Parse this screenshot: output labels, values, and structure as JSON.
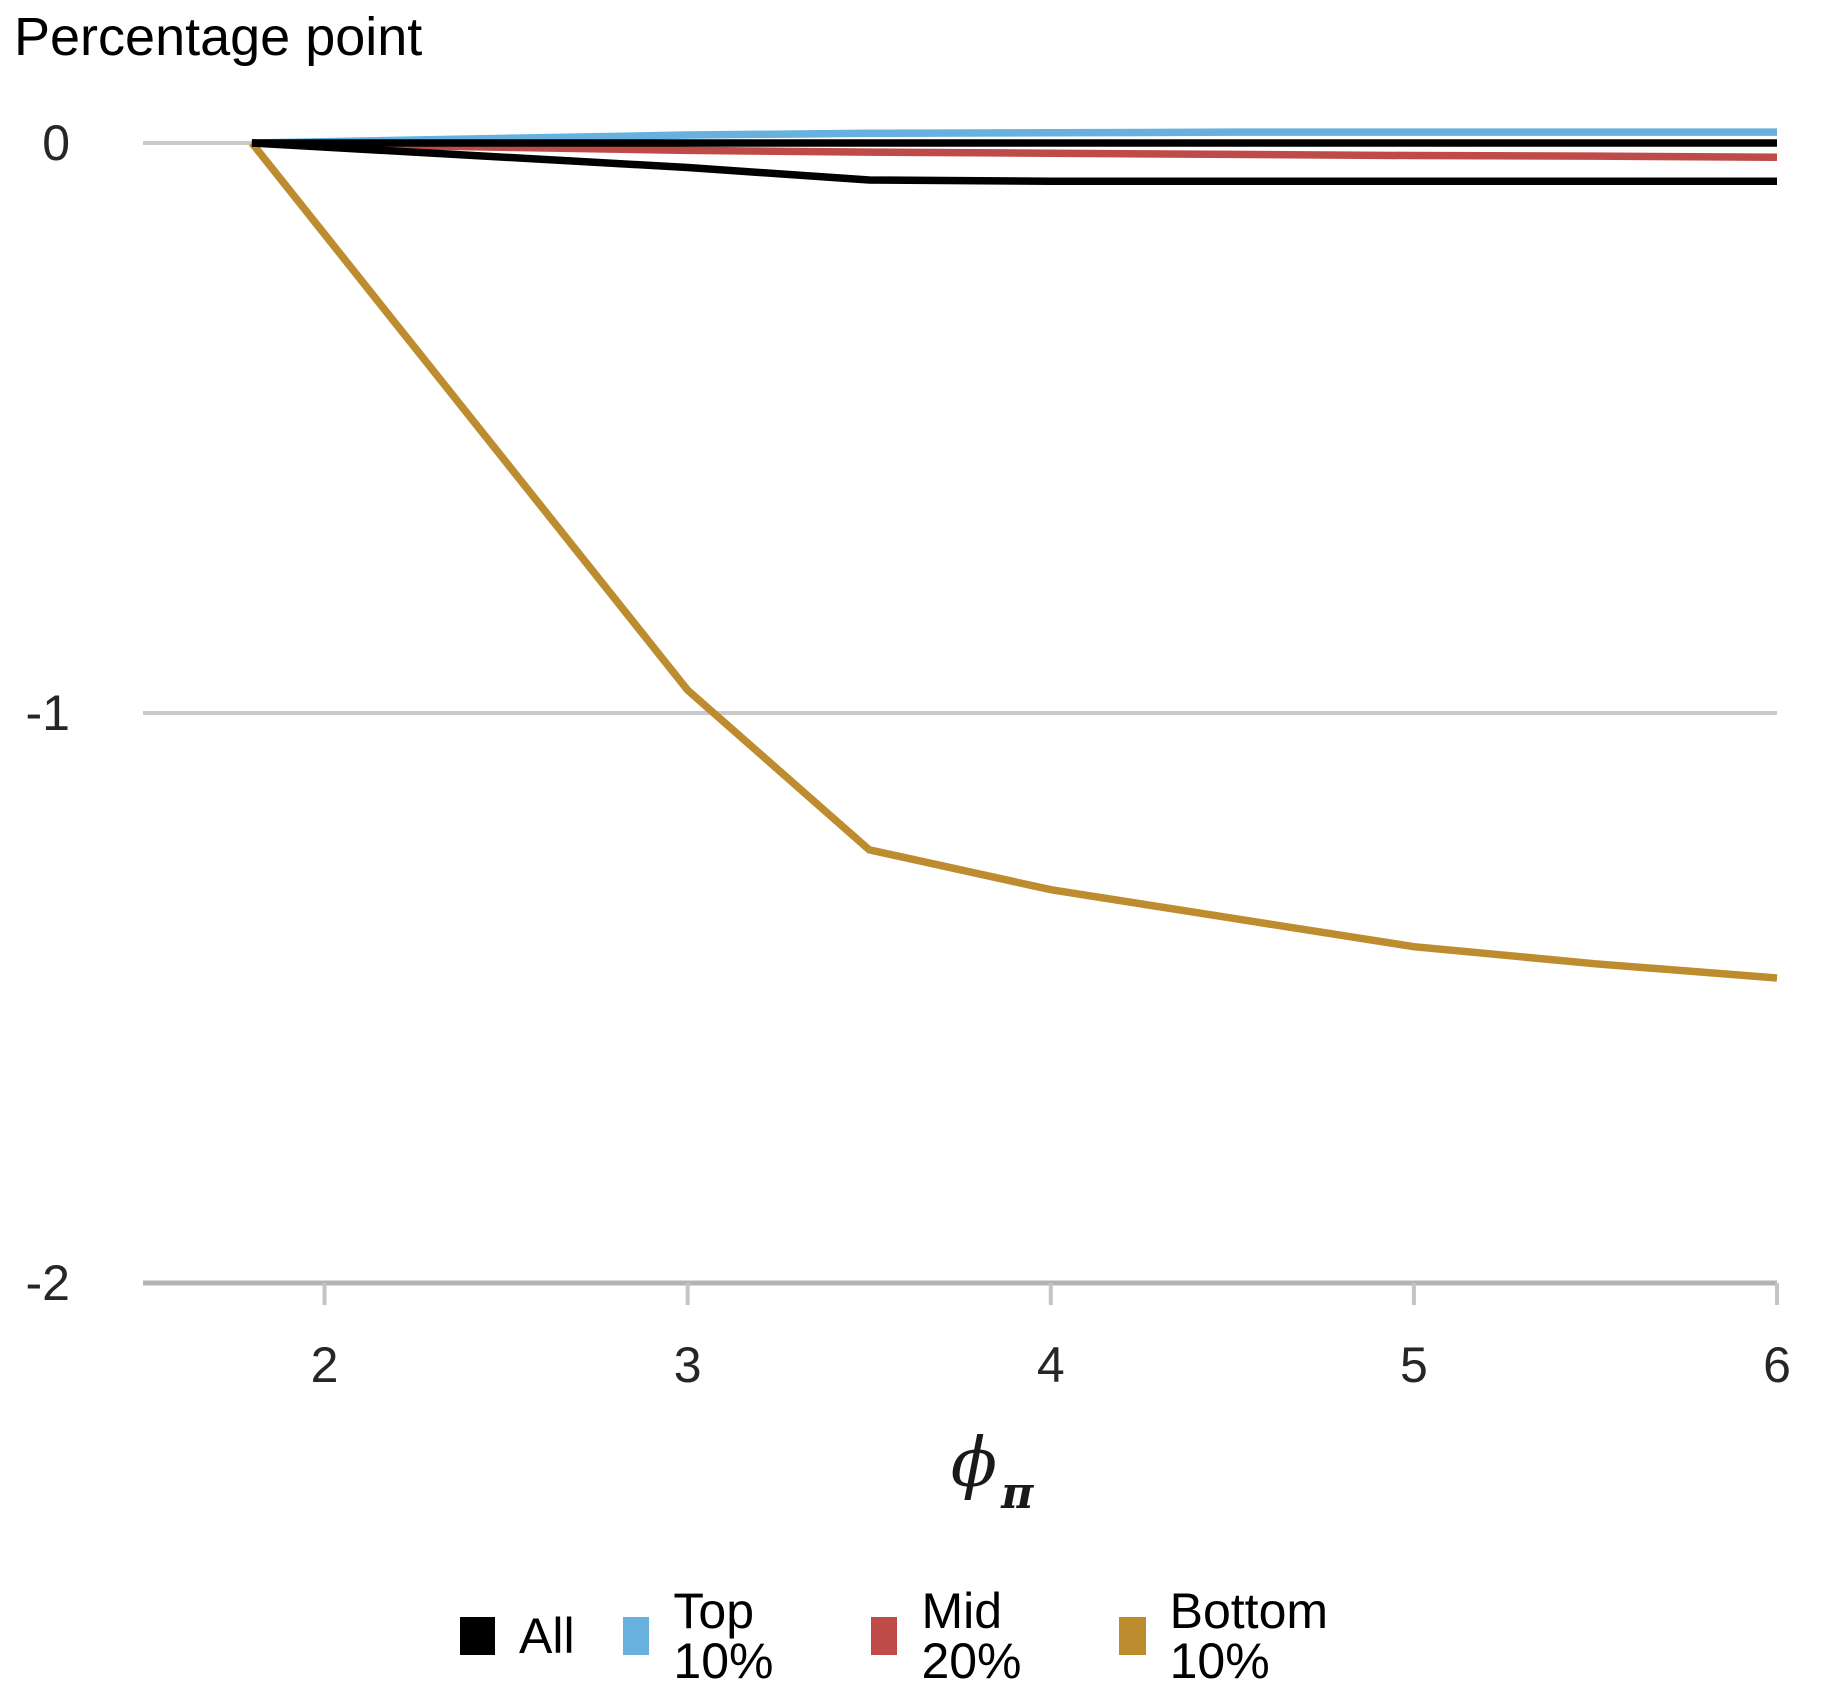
{
  "title": "Percentage point",
  "chart_data": {
    "type": "line",
    "title": "Percentage point",
    "xlabel": "phi_pi",
    "xlabel_base": "ϕ",
    "xlabel_sub": "π",
    "ylabel": "Percentage point",
    "xlim": [
      1.5,
      6
    ],
    "ylim": [
      -2,
      0.1
    ],
    "xticks": [
      2,
      3,
      4,
      5,
      6
    ],
    "xtick_labels": [
      "2",
      "3",
      "4",
      "5",
      "6"
    ],
    "yticks": [
      0,
      -1,
      -2
    ],
    "ytick_labels": [
      "0",
      "-1",
      "-2"
    ],
    "grid": "horizontal-only",
    "legend_position": "bottom-center",
    "x": [
      1.8,
      3.0,
      3.5,
      4.0,
      4.5,
      5.0,
      5.5,
      6.0
    ],
    "series": [
      {
        "name": "All",
        "color": "#000000",
        "values": [
          0,
          -0.043,
          -0.065,
          -0.067,
          -0.067,
          -0.067,
          -0.067,
          -0.067
        ]
      },
      {
        "name": "Top 10%",
        "color": "#68B1DF",
        "values": [
          0,
          0.014,
          0.017,
          0.018,
          0.019,
          0.019,
          0.019,
          0.019
        ]
      },
      {
        "name": "Mid 20%",
        "color": "#BE4B48",
        "values": [
          0,
          -0.013,
          -0.016,
          -0.018,
          -0.02,
          -0.022,
          -0.023,
          -0.025
        ]
      },
      {
        "name": "Bottom 10%",
        "color": "#BD8C2E",
        "values": [
          0,
          -0.96,
          -1.24,
          -1.31,
          -1.36,
          -1.41,
          -1.44,
          -1.465
        ]
      }
    ],
    "reference_lines": [
      {
        "axis": "y",
        "value": 0,
        "color": "#000000",
        "x_start": 1.8,
        "x_end": 6.0
      }
    ],
    "colors": {
      "grid": "#C9C9C9",
      "axis": "#B4B4B4",
      "tick": "#C4C4C4",
      "background": "#FFFFFF"
    }
  }
}
